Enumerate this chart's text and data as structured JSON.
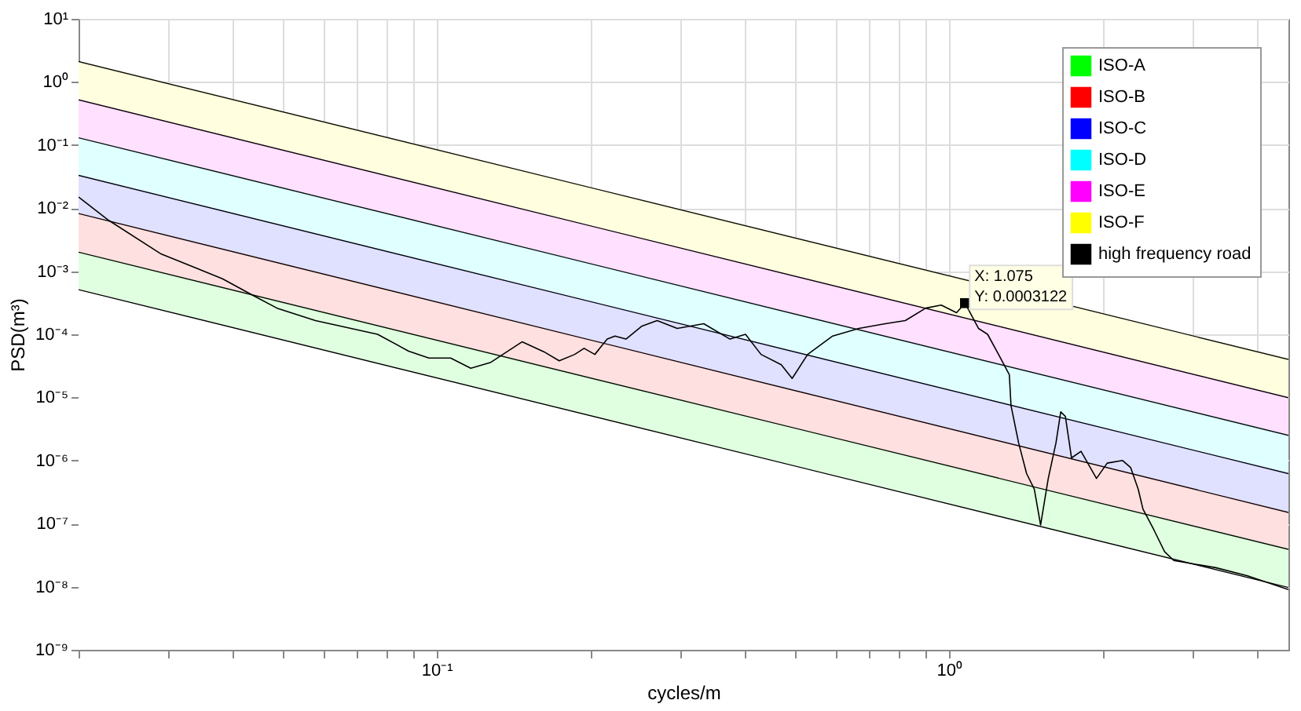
{
  "chart_data": {
    "type": "line",
    "xlabel": "cycles/m",
    "ylabel": "PSD(m³)",
    "log": "xy",
    "grid": true,
    "legend": "top right",
    "xlim": [
      0.02,
      4.6
    ],
    "ylim": [
      1e-09,
      10
    ],
    "xticks": [
      {
        "value": 0.02,
        "label": null
      },
      {
        "value": 0.03,
        "label": null
      },
      {
        "value": 0.04,
        "label": null
      },
      {
        "value": 0.05,
        "label": null
      },
      {
        "value": 0.06,
        "label": null
      },
      {
        "value": 0.07,
        "label": null
      },
      {
        "value": 0.08,
        "label": null
      },
      {
        "value": 0.09,
        "label": null
      },
      {
        "value": 0.1,
        "label": "10⁻¹"
      },
      {
        "value": 0.2,
        "label": null
      },
      {
        "value": 0.3,
        "label": null
      },
      {
        "value": 0.4,
        "label": null
      },
      {
        "value": 0.5,
        "label": null
      },
      {
        "value": 0.6,
        "label": null
      },
      {
        "value": 0.7,
        "label": null
      },
      {
        "value": 0.8,
        "label": null
      },
      {
        "value": 0.9,
        "label": null
      },
      {
        "value": 1,
        "label": "10⁰"
      },
      {
        "value": 2,
        "label": null
      },
      {
        "value": 3,
        "label": null
      },
      {
        "value": 4,
        "label": null
      }
    ],
    "yticks": [
      {
        "value": 1e-09,
        "label": "10⁻⁹"
      },
      {
        "value": 1e-08,
        "label": "10⁻⁸"
      },
      {
        "value": 1e-07,
        "label": "10⁻⁷"
      },
      {
        "value": 1e-06,
        "label": "10⁻⁶"
      },
      {
        "value": 1e-05,
        "label": "10⁻⁵"
      },
      {
        "value": 0.0001,
        "label": "10⁻⁴"
      },
      {
        "value": 0.001,
        "label": "10⁻³"
      },
      {
        "value": 0.01,
        "label": "10⁻²"
      },
      {
        "value": 0.1,
        "label": "10⁻¹"
      },
      {
        "value": 1,
        "label": "10⁰"
      },
      {
        "value": 10,
        "label": "10¹"
      }
    ],
    "series": [
      {
        "type": "area",
        "color": "#ffffff",
        "x": [
          0.02,
          4.6
        ],
        "values": [
          0.00051,
          9.7e-09
        ]
      },
      {
        "name": "ISO-A",
        "type": "area",
        "color": "#00ff00",
        "x": [
          0.02,
          4.6
        ],
        "values": [
          0.002,
          3.9e-08
        ]
      },
      {
        "name": "ISO-B",
        "type": "area",
        "color": "#ff0000",
        "x": [
          0.02,
          4.6
        ],
        "values": [
          0.0082,
          1.5e-07
        ]
      },
      {
        "name": "ISO-C",
        "type": "area",
        "color": "#0000ff",
        "x": [
          0.02,
          4.6
        ],
        "values": [
          0.033,
          6.2e-07
        ]
      },
      {
        "name": "ISO-D",
        "type": "area",
        "color": "#00ffff",
        "x": [
          0.02,
          4.6
        ],
        "values": [
          0.13,
          2.5e-06
        ]
      },
      {
        "name": "ISO-E",
        "type": "area",
        "color": "#ff00ff",
        "x": [
          0.02,
          4.6
        ],
        "values": [
          0.52,
          9.9e-06
        ]
      },
      {
        "name": "ISO-F",
        "type": "area",
        "color": "#ffff00",
        "x": [
          0.02,
          4.6
        ],
        "values": [
          2.1,
          4e-05
        ]
      },
      {
        "name": "high frequency road",
        "color": "#000000",
        "x": [
          0.02,
          0.0229,
          0.0289,
          0.0382,
          0.0439,
          0.0488,
          0.058,
          0.0767,
          0.0882,
          0.0966,
          0.1065,
          0.1166,
          0.1276,
          0.1468,
          0.1619,
          0.1735,
          0.186,
          0.194,
          0.2036,
          0.2153,
          0.2229,
          0.2342,
          0.2512,
          0.2694,
          0.2949,
          0.3322,
          0.3738,
          0.4008,
          0.4298,
          0.4707,
          0.4943,
          0.53,
          0.593,
          0.667,
          0.751,
          0.822,
          0.901,
          0.966,
          1.035,
          1.075,
          1.142,
          1.19,
          1.25,
          1.312,
          1.322,
          1.368,
          1.418,
          1.468,
          1.51,
          1.563,
          1.618,
          1.653,
          1.688,
          1.735,
          1.811,
          1.941,
          2.037,
          2.183,
          2.264,
          2.342,
          2.392,
          2.512,
          2.636,
          2.748,
          3.319,
          3.817,
          4.6
        ],
        "values": [
          0.015,
          0.0064,
          0.0019,
          0.00076,
          0.00041,
          0.00026,
          0.000165,
          0.0001,
          5.4e-05,
          4.2e-05,
          4.2e-05,
          2.9e-05,
          3.6e-05,
          7.6e-05,
          5.3e-05,
          3.8e-05,
          4.8e-05,
          6e-05,
          4.8e-05,
          8.4e-05,
          9.4e-05,
          8.4e-05,
          0.000134,
          0.000165,
          0.000124,
          0.000147,
          8.4e-05,
          0.0001,
          4.8e-05,
          3.3e-05,
          2e-05,
          4.8e-05,
          9.4e-05,
          0.000124,
          0.000147,
          0.000165,
          0.00026,
          0.00029,
          0.00022,
          0.0003122,
          0.000124,
          0.0001,
          4.8e-05,
          2.3e-05,
          7.4e-06,
          1.9e-06,
          6.2e-07,
          3.5e-07,
          9.5e-08,
          5.2e-07,
          1.9e-06,
          5.9e-06,
          5e-06,
          1.1e-06,
          1.4e-06,
          5.2e-07,
          9.1e-07,
          1e-06,
          7.7e-07,
          3.5e-07,
          1.7e-07,
          8e-08,
          3.6e-08,
          2.6e-08,
          2e-08,
          1.5e-08,
          9e-09
        ]
      }
    ],
    "annotations": [
      {
        "text": "X: 1.075\nY: 0.0003122",
        "x": 1.075,
        "y": 0.0003122
      }
    ]
  }
}
